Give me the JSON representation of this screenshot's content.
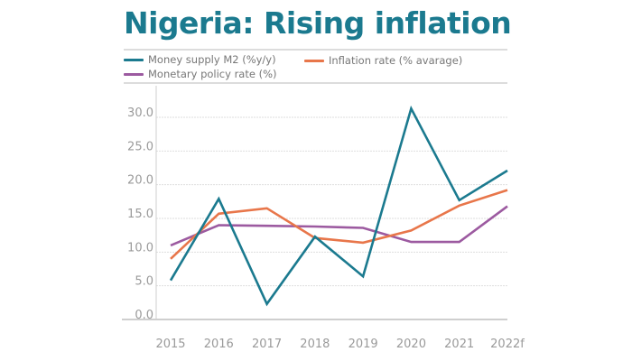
{
  "header": {
    "title": "Nigeria: Rising inflation"
  },
  "chart_data": {
    "type": "line",
    "title": "Nigeria: Rising inflation",
    "xlabel": "",
    "ylabel": "",
    "categories": [
      "2015",
      "2016",
      "2017",
      "2018",
      "2019",
      "2020",
      "2021",
      "2022f"
    ],
    "yticks": [
      0,
      5,
      10,
      15,
      20,
      25,
      30
    ],
    "ytick_labels": [
      "0.0",
      "5.0",
      "10.0",
      "15.0",
      "20.0",
      "25.0",
      "30.0"
    ],
    "ylim": [
      0,
      35
    ],
    "grid": true,
    "legend_position": "top-left",
    "series": [
      {
        "name": "Money supply M2 (%y/y)",
        "color": "#1b7a8f",
        "values": [
          5.8,
          17.9,
          2.3,
          12.3,
          6.4,
          31.3,
          17.7,
          22.1
        ]
      },
      {
        "name": "Inflation rate (% avarage)",
        "color": "#e8764a",
        "values": [
          9.0,
          15.7,
          16.5,
          12.1,
          11.4,
          13.2,
          16.9,
          19.2
        ]
      },
      {
        "name": "Monetary policy rate (%)",
        "color": "#9c5aa0",
        "values": [
          11.0,
          14.0,
          13.9,
          13.8,
          13.6,
          11.5,
          11.5,
          16.8
        ]
      }
    ]
  }
}
